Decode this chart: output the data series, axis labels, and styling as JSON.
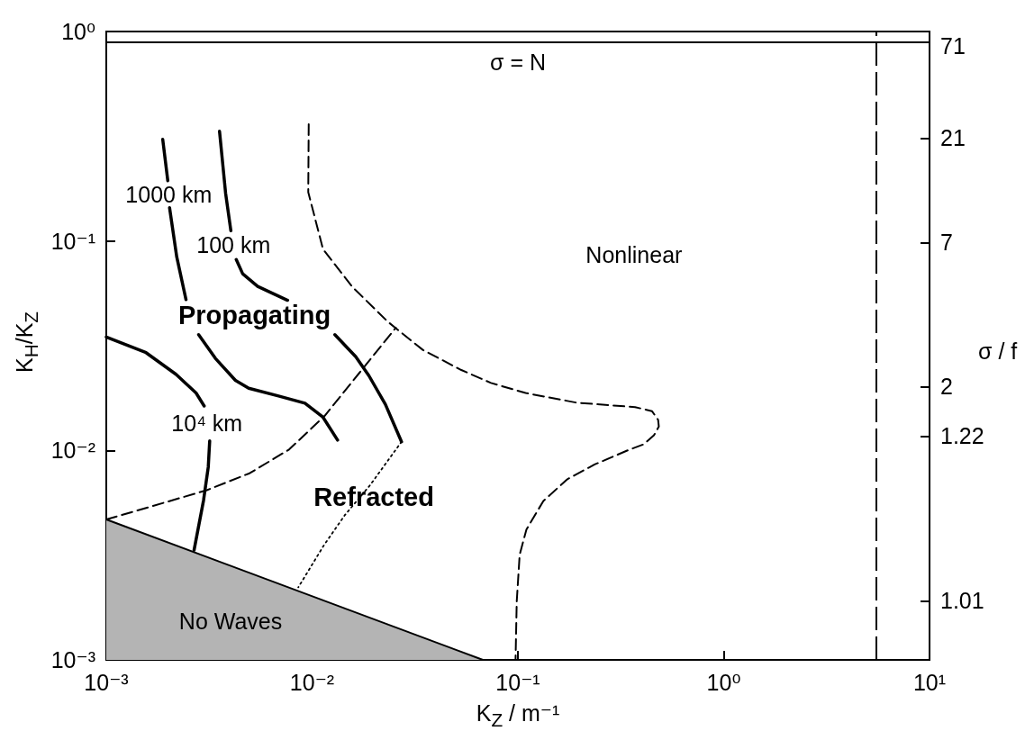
{
  "chart_data": {
    "type": "line",
    "xlabel": "K$_{Z}$ / m⁻¹",
    "ylabel": "K$_{H}$/K$_{Z}$",
    "y2label": "σ / f",
    "log": "xy",
    "xlim": [
      0.001,
      10
    ],
    "xticks": [
      {
        "value": 0.001,
        "label": "10⁻³"
      },
      {
        "value": 0.01,
        "label": "10⁻²"
      },
      {
        "value": 0.1,
        "label": "10⁻¹"
      },
      {
        "value": 1,
        "label": "10⁰"
      },
      {
        "value": 10,
        "label": "10¹"
      }
    ],
    "ylim": [
      0.001,
      1
    ],
    "yticks": [
      {
        "value": 0.001,
        "label": "10⁻³"
      },
      {
        "value": 0.01,
        "label": "10⁻²"
      },
      {
        "value": 0.1,
        "label": "10⁻¹"
      },
      {
        "value": 1,
        "label": "10⁰"
      }
    ],
    "series": [
      {
        "type": "area",
        "color": "#b4b4b4",
        "x": [
          0.001,
          0.0676
        ],
        "values": [
          0.00468,
          0.001
        ]
      },
      {
        "name": "1000 km",
        "color": "#000000",
        "line_style": "solid",
        "x": [
          0.00188,
          0.00199,
          0.00201,
          0.00203,
          0.0022,
          0.00244,
          0.00262,
          0.00281,
          0.00339,
          0.00424,
          0.00492,
          0.00687,
          0.00923,
          0.0113,
          0.0133
        ],
        "values": [
          0.306,
          0.194,
          null,
          0.144,
          0.0839,
          0.0525,
          null,
          0.0357,
          0.0275,
          0.0216,
          0.0198,
          0.0182,
          0.0168,
          0.0144,
          0.0112
        ]
      },
      {
        "name": "100 km",
        "color": "#000000",
        "line_style": "solid",
        "x": [
          0.00355,
          0.0038,
          0.00403,
          0.00415,
          0.00428,
          0.0046,
          0.00544,
          0.0076,
          0.0099,
          0.0129,
          0.0163,
          0.0189,
          0.0227,
          0.0272
        ],
        "values": [
          0.334,
          0.169,
          0.112,
          null,
          0.0815,
          0.0697,
          0.0607,
          0.0521,
          null,
          0.0357,
          0.028,
          0.0227,
          0.0166,
          0.011
        ]
      },
      {
        "color": "#000000",
        "line_style": "dotted",
        "x": [
          0.0272,
          0.0191,
          0.0144,
          0.0114,
          0.00857
        ],
        "values": [
          0.011,
          0.00681,
          0.0049,
          0.00352,
          0.00222
        ]
      },
      {
        "name": "10⁴ km",
        "color": "#000000",
        "line_style": "solid",
        "x": [
          0.001,
          0.00156,
          0.00218,
          0.00273,
          0.00299,
          0.00308,
          0.00318,
          0.00313,
          0.00297,
          0.00267
        ],
        "values": [
          0.0348,
          0.0293,
          0.0231,
          0.0188,
          0.0163,
          null,
          0.0111,
          0.00834,
          0.00579,
          0.00334
        ]
      },
      {
        "color": "#000000",
        "line_style": "dashed",
        "x": [
          0.001,
          0.00159,
          0.00308,
          0.00497,
          0.00773,
          0.0115,
          0.017,
          0.0255
        ],
        "values": [
          0.00468,
          0.00534,
          0.00646,
          0.00778,
          0.0101,
          0.0146,
          0.0235,
          0.0385
        ]
      },
      {
        "color": "#000000",
        "line_style": "dashed",
        "x": [
          0.00963,
          0.00958,
          0.0113,
          0.0157,
          0.0233,
          0.0345,
          0.0531,
          0.074,
          0.109,
          0.193,
          0.371,
          0.448,
          0.48,
          0.484,
          0.458,
          0.409,
          0.345,
          0.236,
          0.174,
          0.133,
          0.11,
          0.102,
          0.0987,
          0.0974
        ],
        "values": [
          0.361,
          0.171,
          0.0913,
          0.0603,
          0.0412,
          0.0302,
          0.0242,
          0.021,
          0.0188,
          0.0169,
          0.0161,
          0.0154,
          0.014,
          0.013,
          0.0118,
          0.0107,
          0.01005,
          0.00857,
          0.00729,
          0.00574,
          0.00419,
          0.00318,
          0.0019,
          0.001
        ]
      }
    ],
    "ref_lines": [
      {
        "axis": "y",
        "value": 0.89,
        "label": "σ = N"
      },
      {
        "axis": "x",
        "value": 5.5,
        "line_style": "dashed"
      }
    ],
    "annotations": [
      "Propagating",
      "Refracted",
      "Nonlinear",
      "No Waves",
      "71",
      "21",
      "7",
      "2",
      "1.22",
      "1.01"
    ]
  }
}
